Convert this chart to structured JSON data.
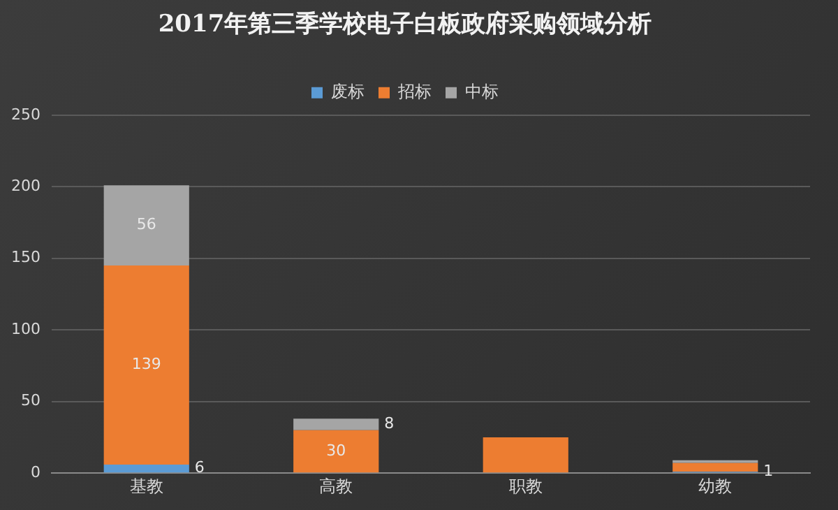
{
  "chart_data": {
    "type": "bar",
    "title": "2017年第三季学校电子白板政府采购领域分析",
    "categories": [
      "基教",
      "高教",
      "职教",
      "幼教"
    ],
    "stacked": true,
    "series": [
      {
        "name": "废标",
        "color": "#5b9bd5",
        "values": [
          6,
          0,
          0,
          1
        ],
        "value_labels": [
          "6",
          null,
          null,
          "1"
        ]
      },
      {
        "name": "招标",
        "color": "#ed7d31",
        "values": [
          139,
          30,
          25,
          6
        ],
        "value_labels": [
          "139",
          "30",
          null,
          null
        ]
      },
      {
        "name": "中标",
        "color": "#a5a5a5",
        "values": [
          56,
          8,
          null,
          2
        ],
        "value_labels": [
          "56",
          "8",
          null,
          null
        ]
      }
    ],
    "ylim": [
      0,
      250
    ],
    "yticks": [
      0,
      50,
      100,
      150,
      200,
      250
    ],
    "grid": "y",
    "legend": "top"
  }
}
